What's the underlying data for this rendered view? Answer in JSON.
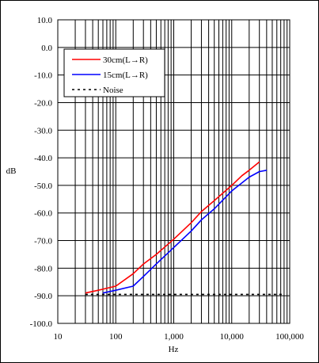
{
  "chart_data": {
    "type": "line",
    "xscale": "log",
    "xlim": [
      10,
      100000
    ],
    "ylim": [
      -100,
      10
    ],
    "xlabel": "Hz",
    "ylabel": "dB",
    "xticks": [
      10,
      100,
      1000,
      10000,
      100000
    ],
    "xtick_labels": [
      "10",
      "100",
      "1,000",
      "10,000",
      "100,000"
    ],
    "yticks": [
      10,
      0,
      -10,
      -20,
      -30,
      -40,
      -50,
      -60,
      -70,
      -80,
      -90,
      -100
    ],
    "ytick_labels": [
      "10.0",
      "0.0",
      "-10.0",
      "-20.0",
      "-30.0",
      "-40.0",
      "-50.0",
      "-60.0",
      "-70.0",
      "-80.0",
      "-90.0",
      "-100.0"
    ],
    "grid": true,
    "legend_position": "top-left",
    "series": [
      {
        "name": "30cm(L→R)",
        "color": "#ff0000",
        "style": "solid",
        "x": [
          30,
          50,
          100,
          200,
          300,
          500,
          1000,
          2000,
          3000,
          5000,
          10000,
          15000,
          20000,
          30000
        ],
        "y": [
          -89,
          -88,
          -86.5,
          -82,
          -78.5,
          -75,
          -69.5,
          -63.5,
          -59.5,
          -55.5,
          -50,
          -46.5,
          -44.5,
          -41.5
        ]
      },
      {
        "name": "15cm(L→R)",
        "color": "#0000ff",
        "style": "solid",
        "x": [
          60,
          100,
          200,
          300,
          500,
          1000,
          2000,
          3000,
          5000,
          10000,
          20000,
          30000,
          40000
        ],
        "y": [
          -89,
          -88,
          -86.5,
          -83,
          -78.5,
          -72.5,
          -66.5,
          -62.5,
          -58.5,
          -52,
          -47,
          -45,
          -44.5
        ]
      },
      {
        "name": "Noise",
        "color": "#000000",
        "style": "dotted",
        "x": [
          30,
          100,
          1000,
          10000,
          80000
        ],
        "y": [
          -89.5,
          -89.5,
          -89.5,
          -89.5,
          -89.5
        ]
      }
    ]
  }
}
